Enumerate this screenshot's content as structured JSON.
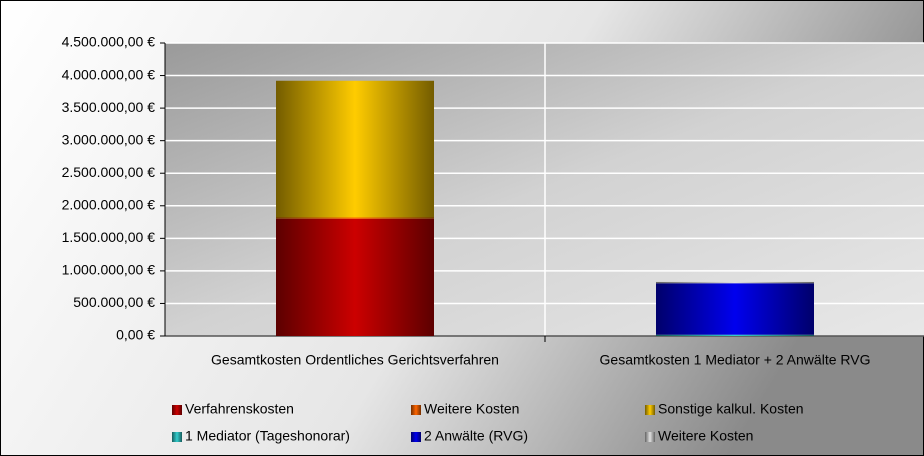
{
  "chart_data": {
    "type": "bar",
    "stacked": true,
    "categories": [
      "Gesamtkosten Ordentliches Gerichtsverfahren",
      "Gesamtkosten 1 Mediator + 2 Anwälte RVG"
    ],
    "series": [
      {
        "name": "Verfahrenskosten",
        "color": "#cc0000",
        "values": [
          1800000,
          0
        ]
      },
      {
        "name": "Weitere Kosten",
        "color": "#ff6600",
        "values": [
          20000,
          0
        ]
      },
      {
        "name": "Sonstige kalkul. Kosten",
        "color": "#ffcc00",
        "values": [
          2100000,
          0
        ]
      },
      {
        "name": "1 Mediator (Tageshonorar)",
        "color": "#33cccc",
        "values": [
          0,
          20000
        ]
      },
      {
        "name": "2 Anwälte (RVG)",
        "color": "#0000ee",
        "values": [
          0,
          790000
        ]
      },
      {
        "name": "Weitere Kosten",
        "color": "#e0e0e0",
        "values": [
          0,
          20000
        ]
      }
    ],
    "ylim": [
      0,
      4500000
    ],
    "yticks": [
      {
        "value": 0,
        "label": "0,00 €"
      },
      {
        "value": 500000,
        "label": "500.000,00 €"
      },
      {
        "value": 1000000,
        "label": "1.000.000,00 €"
      },
      {
        "value": 1500000,
        "label": "1.500.000,00 €"
      },
      {
        "value": 2000000,
        "label": "2.000.000,00 €"
      },
      {
        "value": 2500000,
        "label": "2.500.000,00 €"
      },
      {
        "value": 3000000,
        "label": "3.000.000,00 €"
      },
      {
        "value": 3500000,
        "label": "3.500.000,00 €"
      },
      {
        "value": 4000000,
        "label": "4.000.000,00 €"
      },
      {
        "value": 4500000,
        "label": "4.500.000,00 €"
      }
    ],
    "grid": true,
    "legend": "bottom"
  }
}
